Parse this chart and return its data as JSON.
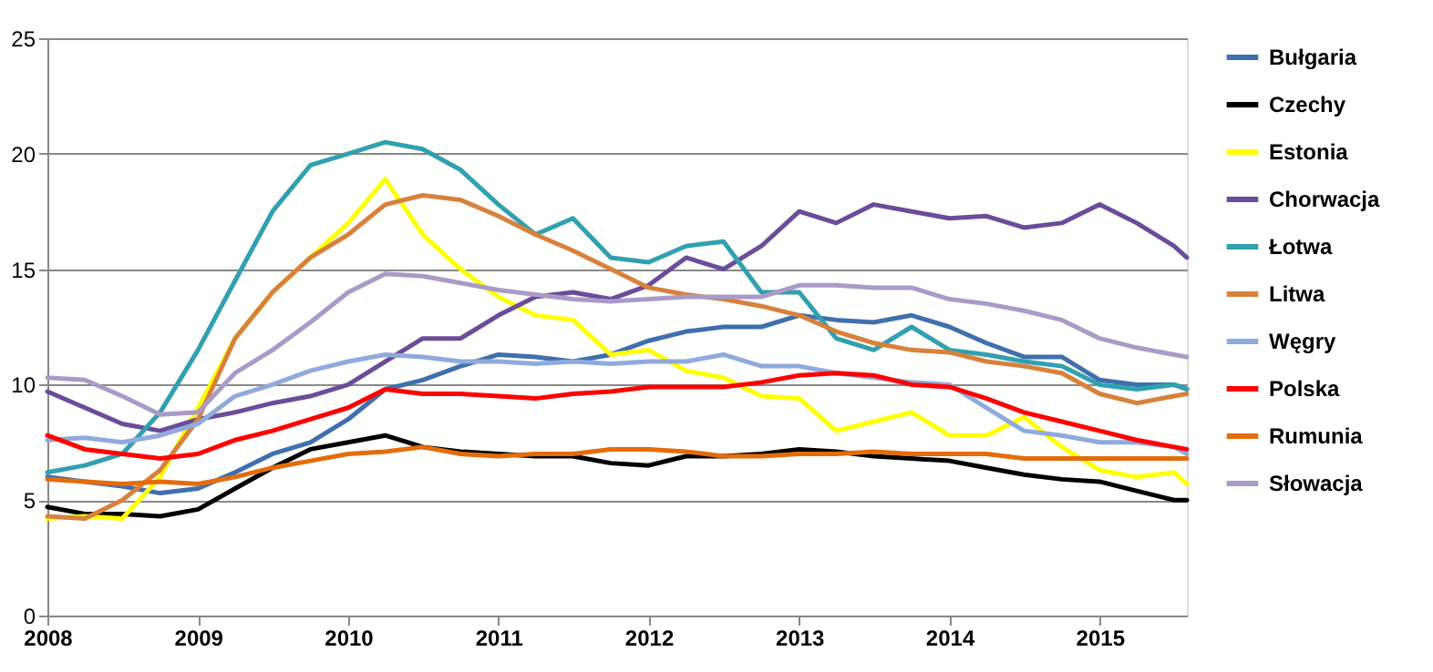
{
  "chart_data": {
    "type": "line",
    "x": [
      "2008-01",
      "2008-04",
      "2008-07",
      "2008-10",
      "2009-01",
      "2009-04",
      "2009-07",
      "2009-10",
      "2010-01",
      "2010-04",
      "2010-07",
      "2010-10",
      "2011-01",
      "2011-04",
      "2011-07",
      "2011-10",
      "2012-01",
      "2012-04",
      "2012-07",
      "2012-10",
      "2013-01",
      "2013-04",
      "2013-07",
      "2013-10",
      "2014-01",
      "2014-04",
      "2014-07",
      "2014-10",
      "2015-01",
      "2015-04",
      "2015-07",
      "2015-08"
    ],
    "xlim": [
      "2008-01",
      "2015-08"
    ],
    "xticks": [
      "2008",
      "2009",
      "2010",
      "2011",
      "2012",
      "2013",
      "2014",
      "2015"
    ],
    "ylim": [
      0,
      25
    ],
    "yticks": [
      0,
      5,
      10,
      15,
      20,
      25
    ],
    "grid": "y",
    "legend": "right",
    "line_style": "solid",
    "marker": "none",
    "series": [
      {
        "name": "Bułgaria",
        "color": "#3f6fae",
        "values": [
          6.0,
          5.8,
          5.6,
          5.3,
          5.5,
          6.2,
          7.0,
          7.5,
          8.5,
          9.8,
          10.2,
          10.8,
          11.3,
          11.2,
          11.0,
          11.3,
          11.9,
          12.3,
          12.5,
          12.5,
          13.0,
          12.8,
          12.7,
          13.0,
          12.5,
          11.8,
          11.2,
          11.2,
          10.2,
          10.0,
          10.0,
          9.8
        ]
      },
      {
        "name": "Czechy",
        "color": "#000000",
        "values": [
          4.7,
          4.4,
          4.4,
          4.3,
          4.6,
          5.5,
          6.4,
          7.2,
          7.5,
          7.8,
          7.3,
          7.1,
          7.0,
          6.9,
          6.9,
          6.6,
          6.5,
          6.9,
          6.9,
          7.0,
          7.2,
          7.1,
          6.9,
          6.8,
          6.7,
          6.4,
          6.1,
          5.9,
          5.8,
          5.4,
          5.0,
          5.0
        ]
      },
      {
        "name": "Estonia",
        "color": "#ffff00",
        "values": [
          4.2,
          4.3,
          4.2,
          6.0,
          9.0,
          12.0,
          14.0,
          15.5,
          17.0,
          18.9,
          16.5,
          15.0,
          13.8,
          13.0,
          12.8,
          11.3,
          11.5,
          10.6,
          10.3,
          9.5,
          9.4,
          8.0,
          8.4,
          8.8,
          7.8,
          7.8,
          8.6,
          7.3,
          6.3,
          6.0,
          6.2,
          5.7
        ]
      },
      {
        "name": "Chorwacja",
        "color": "#6b4c9a",
        "values": [
          9.7,
          9.0,
          8.3,
          8.0,
          8.5,
          8.8,
          9.2,
          9.5,
          10.0,
          11.0,
          12.0,
          12.0,
          13.0,
          13.8,
          14.0,
          13.7,
          14.3,
          15.5,
          15.0,
          16.0,
          17.5,
          17.0,
          17.8,
          17.5,
          17.2,
          17.3,
          16.8,
          17.0,
          17.8,
          17.0,
          16.0,
          15.5
        ]
      },
      {
        "name": "Łotwa",
        "color": "#31a0b0",
        "values": [
          6.2,
          6.5,
          7.0,
          8.8,
          11.5,
          14.5,
          17.5,
          19.5,
          20.0,
          20.5,
          20.2,
          19.3,
          17.8,
          16.5,
          17.2,
          15.5,
          15.3,
          16.0,
          16.2,
          14.0,
          14.0,
          12.0,
          11.5,
          12.5,
          11.5,
          11.3,
          11.0,
          10.8,
          10.0,
          9.8,
          10.0,
          9.8
        ]
      },
      {
        "name": "Litwa",
        "color": "#d8813c",
        "values": [
          4.3,
          4.2,
          5.0,
          6.3,
          8.5,
          12.0,
          14.0,
          15.5,
          16.5,
          17.8,
          18.2,
          18.0,
          17.3,
          16.5,
          15.8,
          15.0,
          14.2,
          13.9,
          13.7,
          13.4,
          13.0,
          12.3,
          11.8,
          11.5,
          11.4,
          11.0,
          10.8,
          10.5,
          9.6,
          9.2,
          9.5,
          9.6
        ]
      },
      {
        "name": "Węgry",
        "color": "#8faadc",
        "values": [
          7.6,
          7.7,
          7.5,
          7.8,
          8.3,
          9.5,
          10.0,
          10.6,
          11.0,
          11.3,
          11.2,
          11.0,
          11.0,
          10.9,
          11.0,
          10.9,
          11.0,
          11.0,
          11.3,
          10.8,
          10.8,
          10.5,
          10.3,
          10.1,
          10.0,
          9.0,
          8.0,
          7.8,
          7.5,
          7.5,
          7.3,
          7.0
        ]
      },
      {
        "name": "Polska",
        "color": "#ff0000",
        "values": [
          7.8,
          7.2,
          7.0,
          6.8,
          7.0,
          7.6,
          8.0,
          8.5,
          9.0,
          9.8,
          9.6,
          9.6,
          9.5,
          9.4,
          9.6,
          9.7,
          9.9,
          9.9,
          9.9,
          10.1,
          10.4,
          10.5,
          10.4,
          10.0,
          9.9,
          9.4,
          8.8,
          8.4,
          8.0,
          7.6,
          7.3,
          7.2
        ]
      },
      {
        "name": "Rumunia",
        "color": "#e46c0a",
        "values": [
          5.9,
          5.8,
          5.7,
          5.8,
          5.7,
          6.0,
          6.4,
          6.7,
          7.0,
          7.1,
          7.3,
          7.0,
          6.9,
          7.0,
          7.0,
          7.2,
          7.2,
          7.1,
          6.9,
          6.9,
          7.0,
          7.0,
          7.1,
          7.0,
          7.0,
          7.0,
          6.8,
          6.8,
          6.8,
          6.8,
          6.8,
          6.8
        ]
      },
      {
        "name": "Słowacja",
        "color": "#a99bc7",
        "values": [
          10.3,
          10.2,
          9.5,
          8.7,
          8.8,
          10.5,
          11.5,
          12.7,
          14.0,
          14.8,
          14.7,
          14.4,
          14.1,
          13.9,
          13.7,
          13.6,
          13.7,
          13.8,
          13.8,
          13.8,
          14.3,
          14.3,
          14.2,
          14.2,
          13.7,
          13.5,
          13.2,
          12.8,
          12.0,
          11.6,
          11.3,
          11.2
        ]
      }
    ]
  }
}
